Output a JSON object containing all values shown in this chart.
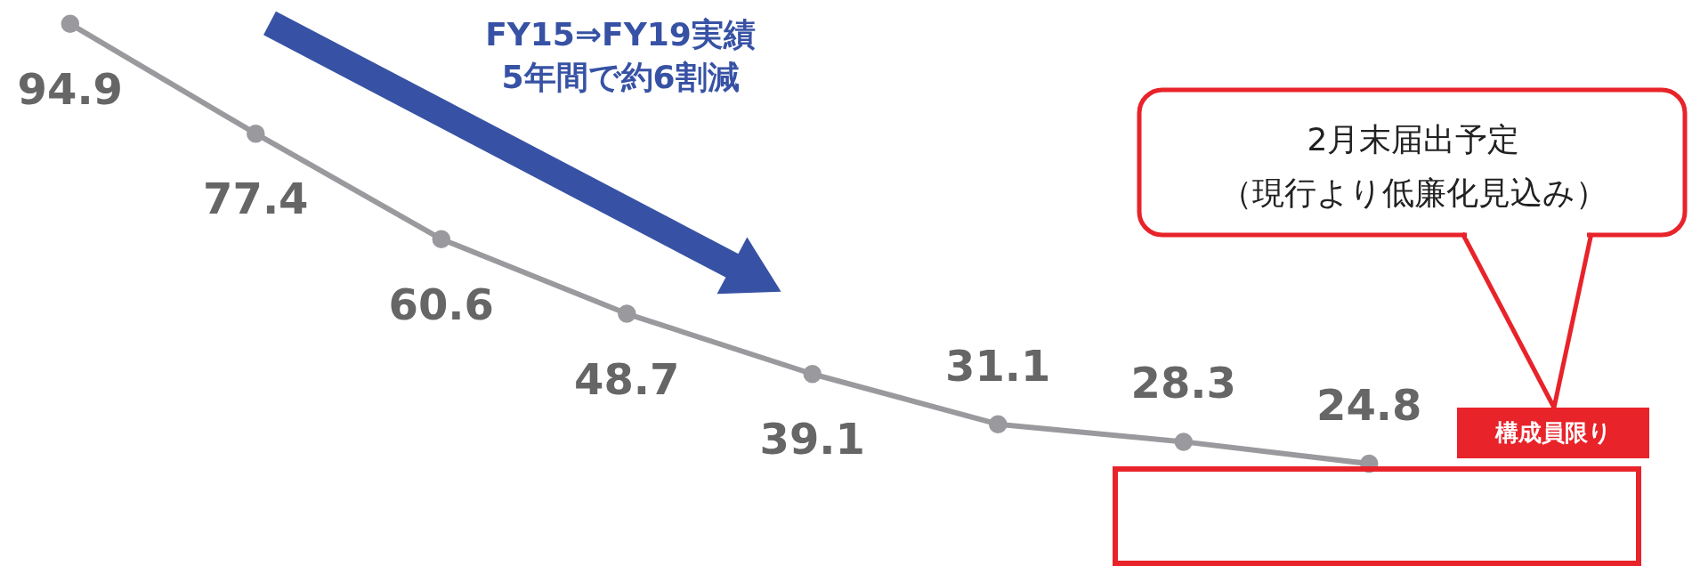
{
  "chart_data": {
    "type": "line",
    "categories": [
      null,
      null,
      null,
      null,
      null,
      null,
      null,
      null
    ],
    "series": [
      {
        "color": "#9a9a9e",
        "values": [
          94.9,
          77.4,
          60.6,
          48.7,
          39.1,
          31.1,
          28.3,
          24.8
        ]
      }
    ],
    "ylim": [
      8.5,
      98.7
    ],
    "data_labels": true,
    "marker": "circle",
    "annotations": [
      "FY15⇒FY19実績",
      "5年間で約6割減",
      "2月末届出予定",
      "（現行より低廉化見込み）",
      "構成員限り"
    ]
  }
}
